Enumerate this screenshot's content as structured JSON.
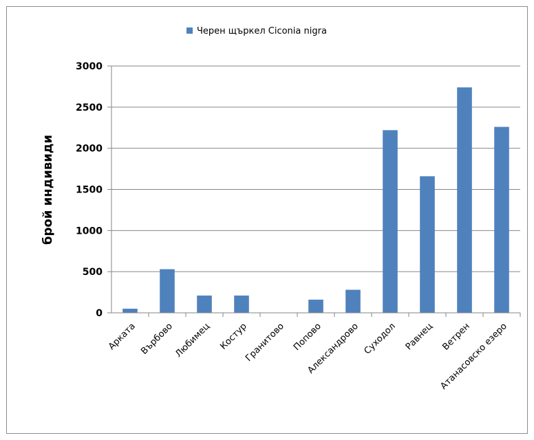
{
  "chart_data": {
    "type": "bar",
    "title": "",
    "xlabel": "",
    "ylabel": "брой индивиди",
    "ylim": [
      0,
      3000
    ],
    "yticks": [
      0,
      500,
      1000,
      1500,
      2000,
      2500,
      3000
    ],
    "grid": true,
    "legend": "top-center",
    "categories": [
      "Арката",
      "Върбово",
      "Любимец",
      "Костур",
      "Гранитово",
      "Попово",
      "Александрово",
      "Суходол",
      "Равнец",
      "Ветрен",
      "Атанасовско езеро"
    ],
    "series": [
      {
        "name": "Черен щъркел Ciconia nigra",
        "color": "#4f81bd",
        "values": [
          50,
          530,
          210,
          210,
          0,
          160,
          280,
          2220,
          1660,
          2740,
          2260
        ]
      }
    ]
  }
}
